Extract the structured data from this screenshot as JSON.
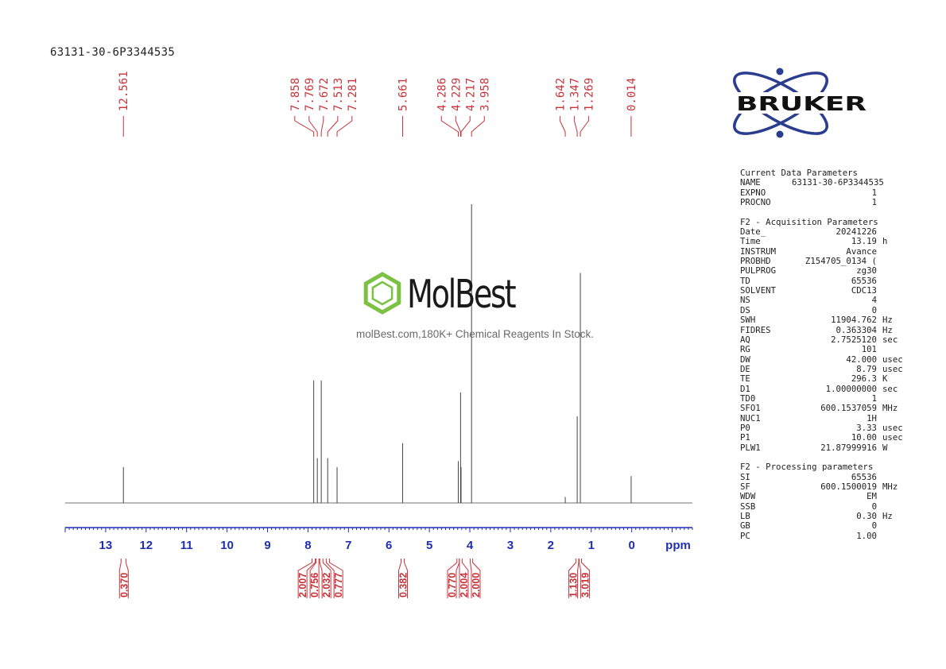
{
  "sample_id": "63131-30-6P3344535",
  "watermark": {
    "name": "MolBest",
    "tagline": "molBest.com,180K+ Chemical Reagents In Stock."
  },
  "logo": {
    "text": "BRUKER",
    "icon": "bruker-atom-logo"
  },
  "colors": {
    "peak_label": "#c8333a",
    "axis": "#1f2fb0",
    "spectrum": "#444444",
    "integral": "#c8333a"
  },
  "chart_data": {
    "type": "line",
    "xlabel": "ppm",
    "xlim": [
      14.0,
      -1.5
    ],
    "x_reversed": true,
    "ticks": [
      13,
      12,
      11,
      10,
      9,
      8,
      7,
      6,
      5,
      4,
      3,
      2,
      1,
      0
    ],
    "peaks": [
      {
        "ppm": 12.561,
        "label": "12.561",
        "height": 0.12
      },
      {
        "ppm": 7.858,
        "label": "7.858",
        "height": 0.41
      },
      {
        "ppm": 7.769,
        "label": "7.769",
        "height": 0.15
      },
      {
        "ppm": 7.672,
        "label": "7.672",
        "height": 0.41
      },
      {
        "ppm": 7.513,
        "label": "7.513",
        "height": 0.15
      },
      {
        "ppm": 7.281,
        "label": "7.281",
        "height": 0.12
      },
      {
        "ppm": 5.661,
        "label": "5.661",
        "height": 0.2
      },
      {
        "ppm": 4.286,
        "label": "4.286",
        "height": 0.14
      },
      {
        "ppm": 4.229,
        "label": "4.229",
        "height": 0.37
      },
      {
        "ppm": 4.217,
        "label": "4.217",
        "height": 0.12
      },
      {
        "ppm": 3.958,
        "label": "3.958",
        "height": 1.0
      },
      {
        "ppm": 1.642,
        "label": "1.642",
        "height": 0.02
      },
      {
        "ppm": 1.347,
        "label": "1.347",
        "height": 0.29
      },
      {
        "ppm": 1.269,
        "label": "1.269",
        "height": 0.77
      },
      {
        "ppm": 0.014,
        "label": "0.014",
        "height": 0.09
      }
    ],
    "peak_label_groups": [
      {
        "labels": [
          "12.561"
        ],
        "targets": [
          12.561
        ]
      },
      {
        "labels": [
          "7.858",
          "7.769",
          "7.672",
          "7.513",
          "7.281"
        ],
        "targets": [
          7.858,
          7.769,
          7.672,
          7.513,
          7.281
        ]
      },
      {
        "labels": [
          "5.661"
        ],
        "targets": [
          5.661
        ]
      },
      {
        "labels": [
          "4.286",
          "4.229",
          "4.217",
          "3.958"
        ],
        "targets": [
          4.286,
          4.229,
          4.217,
          3.958
        ]
      },
      {
        "labels": [
          "1.642",
          "1.347",
          "1.269"
        ],
        "targets": [
          1.642,
          1.347,
          1.269
        ]
      },
      {
        "labels": [
          "0.014"
        ],
        "targets": [
          0.014
        ]
      }
    ],
    "integrals": [
      {
        "labels": [
          "0.370"
        ],
        "ranges": [
          [
            12.62,
            12.5
          ]
        ]
      },
      {
        "labels": [
          "2.007",
          "0.756",
          "2.032",
          "0.777"
        ],
        "ranges": [
          [
            7.9,
            7.82
          ],
          [
            7.8,
            7.73
          ],
          [
            7.71,
            7.63
          ],
          [
            7.55,
            7.47
          ]
        ]
      },
      {
        "labels": [
          "0.382"
        ],
        "ranges": [
          [
            5.7,
            5.62
          ]
        ]
      },
      {
        "labels": [
          "0.770",
          "2.004",
          "2.000"
        ],
        "ranges": [
          [
            4.32,
            4.26
          ],
          [
            4.26,
            4.19
          ],
          [
            3.99,
            3.93
          ]
        ]
      },
      {
        "labels": [
          "1.130",
          "3.019"
        ],
        "ranges": [
          [
            1.38,
            1.31
          ],
          [
            1.3,
            1.24
          ]
        ]
      }
    ]
  },
  "parameters": {
    "current": {
      "title": "Current Data Parameters",
      "rows": [
        {
          "k": "NAME",
          "v": "63131-30-6P3344535",
          "u": ""
        },
        {
          "k": "EXPNO",
          "v": "1",
          "u": ""
        },
        {
          "k": "PROCNO",
          "v": "1",
          "u": ""
        }
      ]
    },
    "acquisition": {
      "title": "F2 - Acquisition Parameters",
      "rows": [
        {
          "k": "Date_",
          "v": "20241226",
          "u": ""
        },
        {
          "k": "Time",
          "v": "13.19",
          "u": "h"
        },
        {
          "k": "INSTRUM",
          "v": "Avance",
          "u": ""
        },
        {
          "k": "PROBHD",
          "v": "Z154705_0134 (",
          "u": ""
        },
        {
          "k": "PULPROG",
          "v": "zg30",
          "u": ""
        },
        {
          "k": "TD",
          "v": "65536",
          "u": ""
        },
        {
          "k": "SOLVENT",
          "v": "CDC13",
          "u": ""
        },
        {
          "k": "NS",
          "v": "4",
          "u": ""
        },
        {
          "k": "DS",
          "v": "0",
          "u": ""
        },
        {
          "k": "SWH",
          "v": "11904.762",
          "u": "Hz"
        },
        {
          "k": "FIDRES",
          "v": "0.363304",
          "u": "Hz"
        },
        {
          "k": "AQ",
          "v": "2.7525120",
          "u": "sec"
        },
        {
          "k": "RG",
          "v": "101",
          "u": ""
        },
        {
          "k": "DW",
          "v": "42.000",
          "u": "usec"
        },
        {
          "k": "DE",
          "v": "8.79",
          "u": "usec"
        },
        {
          "k": "TE",
          "v": "296.3",
          "u": "K"
        },
        {
          "k": "D1",
          "v": "1.00000000",
          "u": "sec"
        },
        {
          "k": "TD0",
          "v": "1",
          "u": ""
        },
        {
          "k": "SFO1",
          "v": "600.1537059",
          "u": "MHz"
        },
        {
          "k": "NUC1",
          "v": "1H",
          "u": ""
        },
        {
          "k": "P0",
          "v": "3.33",
          "u": "usec"
        },
        {
          "k": "P1",
          "v": "10.00",
          "u": "usec"
        },
        {
          "k": "PLW1",
          "v": "21.87999916",
          "u": "W"
        }
      ]
    },
    "processing": {
      "title": "F2 - Processing parameters",
      "rows": [
        {
          "k": "SI",
          "v": "65536",
          "u": ""
        },
        {
          "k": "SF",
          "v": "600.1500019",
          "u": "MHz"
        },
        {
          "k": "WDW",
          "v": "EM",
          "u": ""
        },
        {
          "k": "SSB",
          "v": "0",
          "u": ""
        },
        {
          "k": "LB",
          "v": "0.30",
          "u": "Hz"
        },
        {
          "k": "GB",
          "v": "0",
          "u": ""
        },
        {
          "k": "PC",
          "v": "1.00",
          "u": ""
        }
      ]
    }
  }
}
